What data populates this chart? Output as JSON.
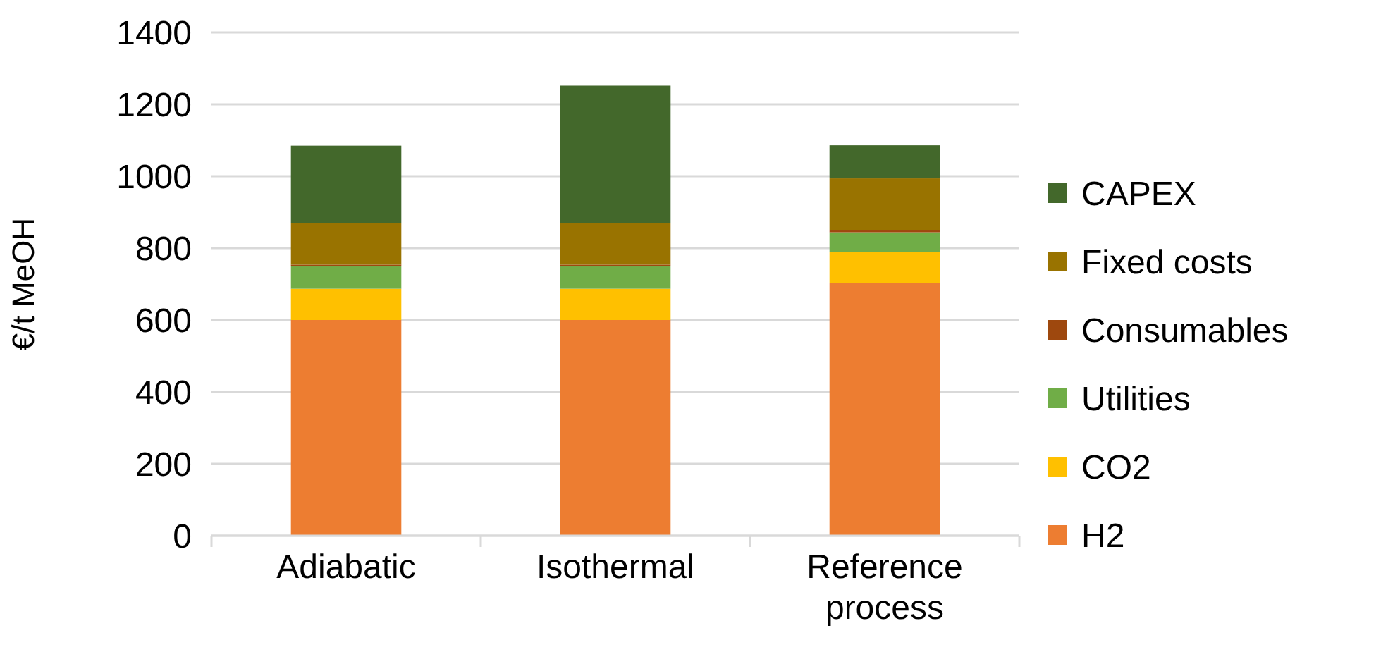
{
  "chart_data": {
    "type": "bar",
    "stacked": true,
    "ylabel": "€/t MeOH",
    "categories": [
      "Adiabatic",
      "Isothermal",
      "Reference process"
    ],
    "series": [
      {
        "name": "H2",
        "color": "#ed7d31",
        "values": [
          600,
          600,
          703
        ]
      },
      {
        "name": "CO2",
        "color": "#ffc000",
        "values": [
          87,
          87,
          86
        ]
      },
      {
        "name": "Utilities",
        "color": "#70ad47",
        "values": [
          62,
          62,
          55
        ]
      },
      {
        "name": "Consumables",
        "color": "#9e480e",
        "values": [
          5,
          5,
          5
        ]
      },
      {
        "name": "Fixed costs",
        "color": "#997300",
        "values": [
          115,
          115,
          145
        ]
      },
      {
        "name": "CAPEX",
        "color": "#43682b",
        "values": [
          216,
          383,
          92
        ]
      }
    ],
    "ylim": [
      0,
      1400
    ],
    "yticks": [
      0,
      200,
      400,
      600,
      800,
      1000,
      1200,
      1400
    ],
    "grid": "y",
    "legend": "right"
  }
}
